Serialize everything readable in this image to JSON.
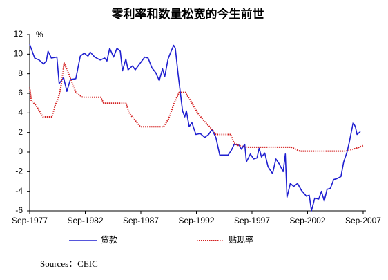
{
  "chart_data": {
    "type": "line",
    "title": "零利率和数量松宽的今生前世",
    "ylabel": "%",
    "source": "Sources：CEIC",
    "xlim": [
      1977.75,
      2008
    ],
    "xticks": [
      {
        "value": 1977.75,
        "label": "Sep-1977"
      },
      {
        "value": 1982.75,
        "label": "Sep-1982"
      },
      {
        "value": 1987.75,
        "label": "Sep-1987"
      },
      {
        "value": 1992.75,
        "label": "Sep-1992"
      },
      {
        "value": 1997.75,
        "label": "Sep-1997"
      },
      {
        "value": 2002.75,
        "label": "Sep-2002"
      },
      {
        "value": 2007.75,
        "label": "Sep-2007"
      }
    ],
    "ylim": [
      -6,
      12
    ],
    "yticks": [
      -6,
      -4,
      -2,
      0,
      2,
      4,
      6,
      8,
      10,
      12
    ],
    "series": [
      {
        "name": "贷款",
        "color": "#1f1fd0",
        "style": "solid",
        "x": [
          1977.75,
          1978.2,
          1978.6,
          1979.0,
          1979.25,
          1979.4,
          1979.7,
          1980.2,
          1980.4,
          1980.8,
          1981.1,
          1981.4,
          1981.9,
          1982.3,
          1982.65,
          1983.0,
          1983.2,
          1983.6,
          1984.1,
          1984.5,
          1984.7,
          1984.95,
          1985.3,
          1985.6,
          1985.9,
          1986.1,
          1986.4,
          1986.6,
          1987.0,
          1987.25,
          1987.7,
          1988.1,
          1988.4,
          1988.75,
          1989.1,
          1989.4,
          1989.7,
          1989.9,
          1990.2,
          1990.4,
          1990.7,
          1990.85,
          1991.1,
          1991.5,
          1991.7,
          1991.85,
          1992.1,
          1992.35,
          1992.7,
          1993.1,
          1993.5,
          1993.85,
          1994.15,
          1994.5,
          1994.85,
          1995.6,
          1995.9,
          1996.15,
          1996.6,
          1996.8,
          1997.1,
          1997.25,
          1997.6,
          1997.9,
          1998.2,
          1998.4,
          1998.6,
          1998.9,
          1999.2,
          1999.6,
          1999.9,
          2000.2,
          2000.55,
          2000.75,
          2000.9,
          2001.2,
          2001.5,
          2001.85,
          2002.2,
          2002.65,
          2002.9,
          2003.1,
          2003.4,
          2003.75,
          2004.0,
          2004.25,
          2004.5,
          2004.8,
          2005.1,
          2005.4,
          2005.75,
          2006.0,
          2006.3,
          2006.5,
          2006.85,
          2007.05,
          2007.2,
          2007.5
        ],
        "values": [
          11,
          9.6,
          9.4,
          9.0,
          9.3,
          10.3,
          9.6,
          9.7,
          7.0,
          7.6,
          6.2,
          7.4,
          7.5,
          9.8,
          10.1,
          9.8,
          10.2,
          9.7,
          9.4,
          9.6,
          9.3,
          10.6,
          9.7,
          10.6,
          10.3,
          8.3,
          9.5,
          8.4,
          8.8,
          8.4,
          9.1,
          9.7,
          9.6,
          8.6,
          8.1,
          7.3,
          8.5,
          7.7,
          9.5,
          10.1,
          10.9,
          10.6,
          8.0,
          4.2,
          3.6,
          4.2,
          2.6,
          3.0,
          1.8,
          1.9,
          1.5,
          1.8,
          2.3,
          1.5,
          -0.3,
          -0.3,
          0.2,
          0.8,
          0.7,
          0.3,
          0.8,
          -1.0,
          -0.2,
          -0.7,
          -0.6,
          0.4,
          -0.5,
          -0.1,
          -1.5,
          -2.2,
          -0.7,
          -1.2,
          -2.0,
          -0.2,
          -4.6,
          -3.2,
          -3.5,
          -3.2,
          -3.9,
          -4.5,
          -4.4,
          -6.0,
          -4.7,
          -4.8,
          -4.0,
          -5.0,
          -3.8,
          -3.7,
          -2.8,
          -2.7,
          -2.5,
          -1.0,
          0.0,
          1.0,
          3.0,
          2.6,
          1.8,
          2.1
        ]
      },
      {
        "name": "贴现率",
        "color": "#d42020",
        "style": "dotted",
        "x": [
          1977.75,
          1977.9,
          1978.3,
          1978.95,
          1979.75,
          1980.05,
          1980.3,
          1980.55,
          1980.85,
          1981.15,
          1981.5,
          1981.9,
          1982.5,
          1984.15,
          1984.4,
          1986.4,
          1986.75,
          1987.2,
          1987.7,
          1989.8,
          1990.25,
          1990.75,
          1991.2,
          1991.75,
          1992.25,
          1992.85,
          1993.5,
          1994.1,
          1994.5,
          1995.85,
          1996.1,
          1996.45,
          1997.3,
          2001.3,
          2002.05,
          2006.15,
          2006.85,
          2007.4,
          2007.8
        ],
        "values": [
          6.6,
          5.2,
          4.8,
          3.6,
          3.6,
          4.8,
          5.4,
          6.6,
          9.1,
          8.3,
          7.3,
          6.1,
          5.6,
          5.6,
          5.0,
          5.0,
          3.9,
          3.3,
          2.6,
          2.6,
          3.4,
          5.0,
          6.1,
          6.1,
          5.2,
          4.0,
          3.1,
          2.4,
          1.8,
          1.8,
          1.0,
          0.7,
          0.5,
          0.5,
          0.1,
          0.1,
          0.3,
          0.5,
          0.7
        ]
      }
    ]
  }
}
